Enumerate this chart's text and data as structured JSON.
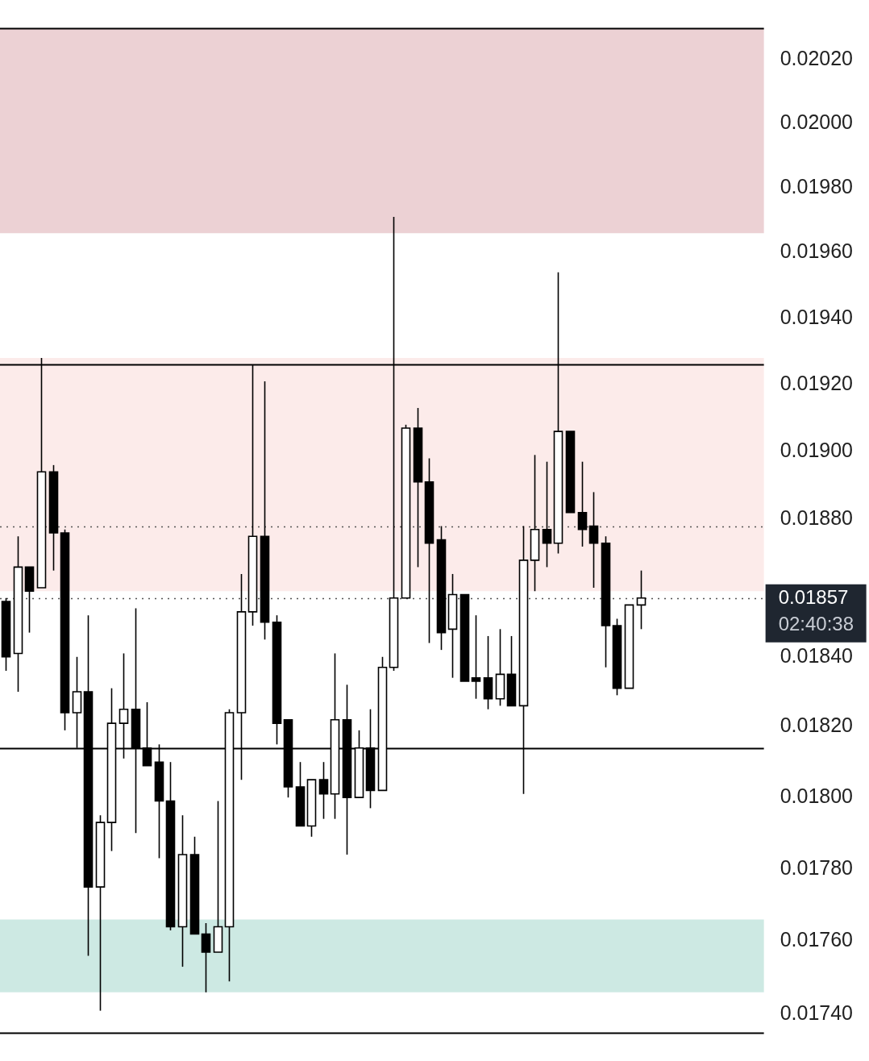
{
  "chart_data": {
    "type": "candlestick",
    "log": true,
    "grid": false,
    "color": "#000000",
    "categories": [
      null,
      null,
      null,
      null,
      null,
      null,
      null,
      null,
      null,
      null,
      null,
      null,
      null,
      null,
      null,
      null,
      null,
      null,
      null,
      null,
      null,
      null,
      null,
      null,
      null,
      null,
      null,
      null,
      null,
      null,
      null,
      null,
      null,
      null,
      null,
      null,
      null,
      null,
      null,
      null,
      null,
      null,
      null,
      null,
      null,
      null,
      null,
      null,
      null,
      null,
      null,
      null,
      null,
      null,
      null,
      null,
      null,
      null,
      null,
      null,
      null,
      null,
      null,
      null,
      null
    ],
    "ohlc": [
      [
        0.01856,
        0.01857,
        0.01836,
        0.0184
      ],
      [
        0.01841,
        0.01875,
        0.0183,
        0.01866
      ],
      [
        0.01866,
        0.01866,
        0.01847,
        0.01859
      ],
      [
        0.0186,
        0.01928,
        0.0186,
        0.01894
      ],
      [
        0.01894,
        0.01896,
        0.01865,
        0.01876
      ],
      [
        0.01876,
        0.01877,
        0.01819,
        0.01824
      ],
      [
        0.01824,
        0.0184,
        0.01814,
        0.0183
      ],
      [
        0.0183,
        0.01852,
        0.01756,
        0.01775
      ],
      [
        0.01775,
        0.01795,
        0.01741,
        0.01793
      ],
      [
        0.01793,
        0.01831,
        0.01785,
        0.01821
      ],
      [
        0.01821,
        0.01841,
        0.01811,
        0.01825
      ],
      [
        0.01825,
        0.01854,
        0.0179,
        0.01814
      ],
      [
        0.01814,
        0.01827,
        0.01809,
        0.01809
      ],
      [
        0.0181,
        0.01815,
        0.01783,
        0.01799
      ],
      [
        0.01799,
        0.0181,
        0.01763,
        0.01764
      ],
      [
        0.01764,
        0.01795,
        0.01753,
        0.01784
      ],
      [
        0.01784,
        0.01789,
        0.01762,
        0.01762
      ],
      [
        0.01762,
        0.01765,
        0.01746,
        0.01757
      ],
      [
        0.01757,
        0.01799,
        0.01757,
        0.01764
      ],
      [
        0.01764,
        0.01825,
        0.01749,
        0.01824
      ],
      [
        0.01824,
        0.01864,
        0.01805,
        0.01853
      ],
      [
        0.01853,
        0.01926,
        0.01849,
        0.01875
      ],
      [
        0.01875,
        0.01921,
        0.01845,
        0.0185
      ],
      [
        0.0185,
        0.01852,
        0.01815,
        0.01821
      ],
      [
        0.01822,
        0.01822,
        0.018,
        0.01803
      ],
      [
        0.01803,
        0.0181,
        0.01792,
        0.01792
      ],
      [
        0.01792,
        0.01805,
        0.01789,
        0.01805
      ],
      [
        0.01805,
        0.0181,
        0.01794,
        0.01801
      ],
      [
        0.01801,
        0.01841,
        0.01794,
        0.01822
      ],
      [
        0.01822,
        0.01832,
        0.01784,
        0.018
      ],
      [
        0.018,
        0.01819,
        0.018,
        0.01814
      ],
      [
        0.01814,
        0.01825,
        0.01797,
        0.01802
      ],
      [
        0.01802,
        0.0184,
        0.01802,
        0.01837
      ],
      [
        0.01837,
        0.01971,
        0.01836,
        0.01857
      ],
      [
        0.01857,
        0.01908,
        0.01857,
        0.01907
      ],
      [
        0.01907,
        0.01913,
        0.01866,
        0.01891
      ],
      [
        0.01891,
        0.01898,
        0.01844,
        0.01873
      ],
      [
        0.01874,
        0.01878,
        0.01842,
        0.01847
      ],
      [
        0.01848,
        0.01864,
        0.01834,
        0.01858
      ],
      [
        0.01858,
        0.01858,
        0.01833,
        0.01833
      ],
      [
        0.01834,
        0.01852,
        0.01828,
        0.01833
      ],
      [
        0.01834,
        0.01846,
        0.01825,
        0.01828
      ],
      [
        0.01828,
        0.01848,
        0.01826,
        0.01835
      ],
      [
        0.01835,
        0.01846,
        0.01826,
        0.01826
      ],
      [
        0.01826,
        0.01878,
        0.01801,
        0.01868
      ],
      [
        0.01868,
        0.01899,
        0.01859,
        0.01877
      ],
      [
        0.01877,
        0.01897,
        0.01866,
        0.01873
      ],
      [
        0.01873,
        0.01954,
        0.0187,
        0.01906
      ],
      [
        0.01906,
        0.01906,
        0.01882,
        0.01882
      ],
      [
        0.01882,
        0.01897,
        0.01872,
        0.01877
      ],
      [
        0.01878,
        0.01888,
        0.0186,
        0.01873
      ],
      [
        0.01873,
        0.01875,
        0.01837,
        0.01849
      ],
      [
        0.01849,
        0.01851,
        0.01829,
        0.01831
      ],
      [
        0.01831,
        0.01855,
        0.01831,
        0.01855
      ],
      [
        0.01855,
        0.01865,
        0.01848,
        0.01857
      ],
      null,
      null,
      null,
      null,
      null,
      null,
      null,
      null,
      null,
      null
    ],
    "ylim": [
      0.01735,
      0.0203
    ],
    "yticks": [
      {
        "value": 0.0174,
        "label": "0.01740"
      },
      {
        "value": 0.0176,
        "label": "0.01760"
      },
      {
        "value": 0.0178,
        "label": "0.01780"
      },
      {
        "value": 0.018,
        "label": "0.01800"
      },
      {
        "value": 0.0182,
        "label": "0.01820"
      },
      {
        "value": 0.0184,
        "label": "0.01840"
      },
      {
        "value": 0.0188,
        "label": "0.01880"
      },
      {
        "value": 0.019,
        "label": "0.01900"
      },
      {
        "value": 0.0192,
        "label": "0.01920"
      },
      {
        "value": 0.0194,
        "label": "0.01940"
      },
      {
        "value": 0.0196,
        "label": "0.01960"
      },
      {
        "value": 0.0198,
        "label": "0.01980"
      },
      {
        "value": 0.02,
        "label": "0.02000"
      },
      {
        "value": 0.0202,
        "label": "0.02020"
      }
    ],
    "tick_labels": "y",
    "bands": [
      {
        "axis": "y",
        "from": 0.01966,
        "to": 0.0203,
        "color": "#ecd1d4"
      },
      {
        "axis": "y",
        "from": 0.01859,
        "to": 0.01928,
        "color": "#fcebea"
      },
      {
        "axis": "y",
        "from": 0.01746,
        "to": 0.01766,
        "color": "#cde9e3"
      }
    ],
    "ref_lines": [
      {
        "axis": "y",
        "value": 0.0203,
        "color": "#000000",
        "line_style": "solid"
      },
      {
        "axis": "y",
        "value": 0.01926,
        "color": "#000000",
        "line_style": "solid"
      },
      {
        "axis": "y",
        "value": 0.01814,
        "color": "#000000",
        "line_style": "solid"
      },
      {
        "axis": "y",
        "value": 0.01735,
        "color": "#000000",
        "line_style": "solid"
      },
      {
        "axis": "y",
        "value": 0.01878,
        "color": "#555555",
        "line_style": "dotted"
      },
      {
        "axis": "y",
        "value": 0.01857,
        "color": "#555555",
        "line_style": "dotted",
        "label": "0.01857"
      }
    ],
    "annotations": [
      "02:40:38"
    ]
  }
}
